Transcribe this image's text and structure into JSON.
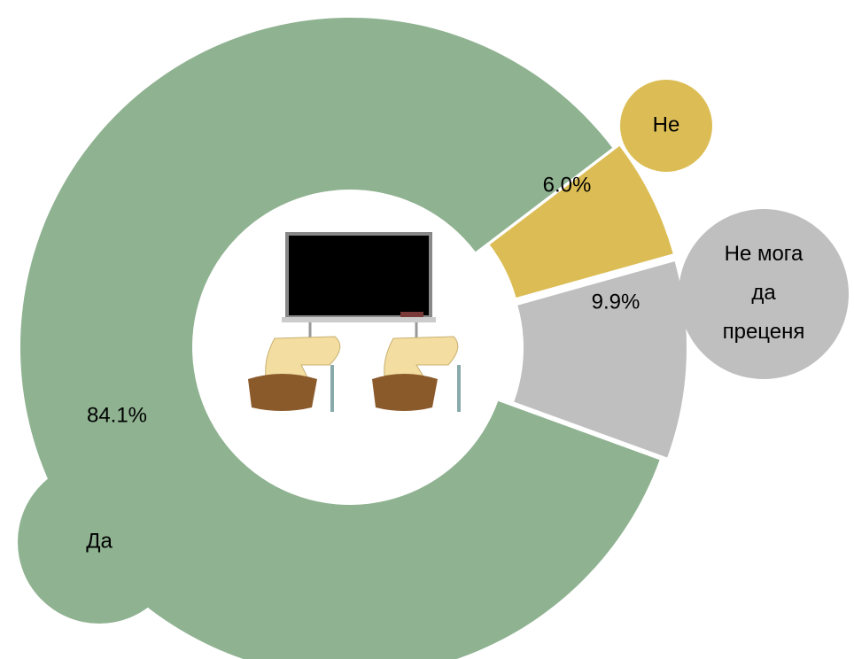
{
  "chart_data": {
    "type": "pie",
    "categories": [
      "Да",
      "Не",
      "Не мога да преценя"
    ],
    "values": [
      84.1,
      6.0,
      9.9
    ],
    "value_labels": [
      "84.1%",
      "6.0%",
      "9.9%"
    ],
    "colors": [
      "#8fb291",
      "#dcbd55",
      "#bfbfbf"
    ]
  }
}
